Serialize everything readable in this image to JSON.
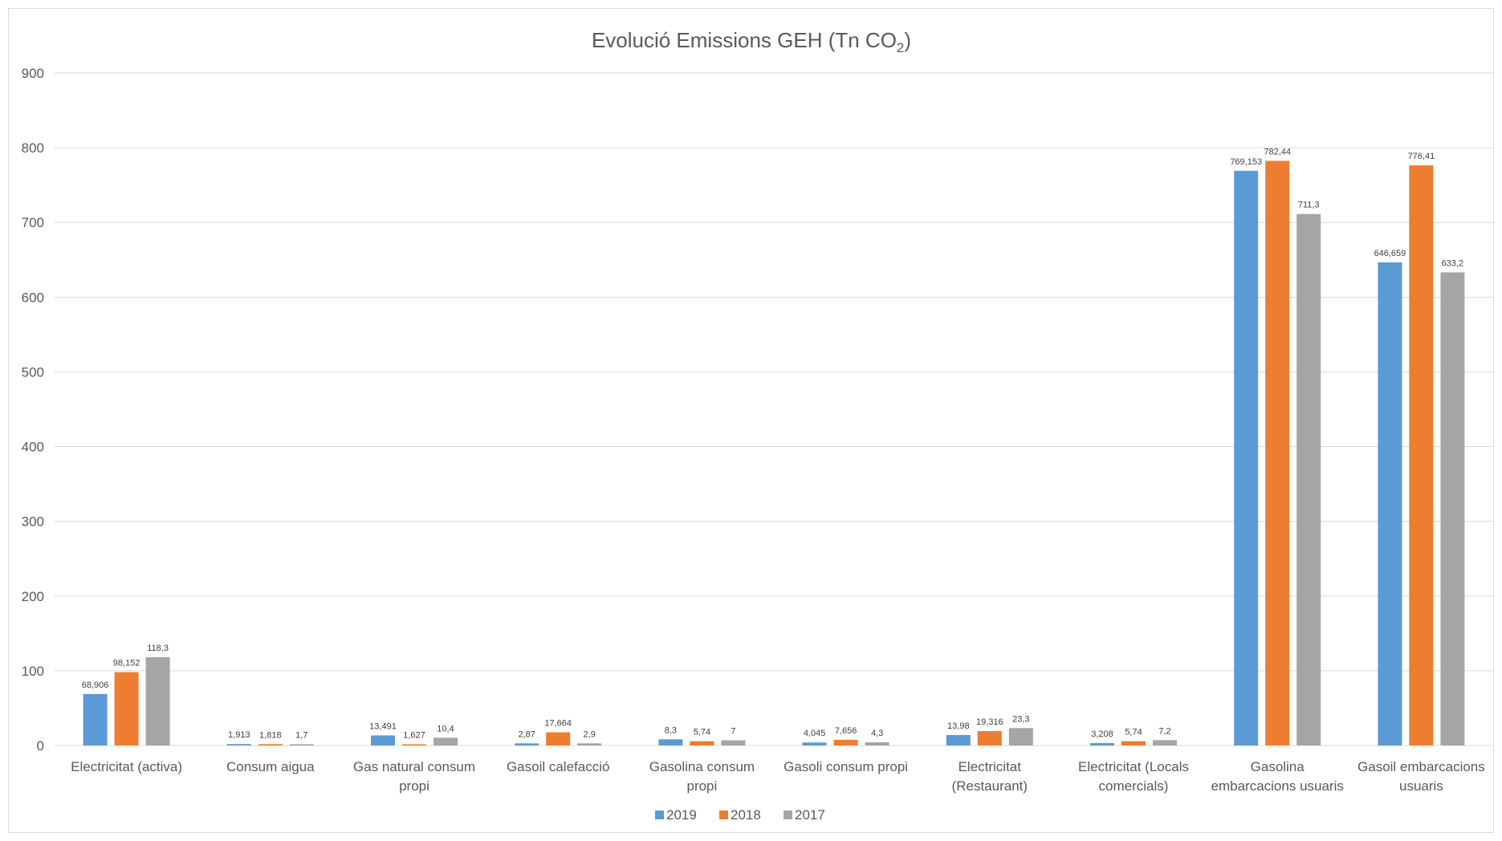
{
  "chart_data": {
    "type": "bar",
    "title": "Evolució Emissions GEH (Tn CO",
    "title_subscript": "2",
    "title_suffix": ")",
    "xlabel": "",
    "ylabel": "",
    "ylim": [
      0,
      900
    ],
    "yticks": [
      "0",
      "100",
      "200",
      "300",
      "400",
      "500",
      "600",
      "700",
      "800",
      "900"
    ],
    "grid": true,
    "legend_position": "bottom",
    "categories": [
      [
        "Electricitat (activa)"
      ],
      [
        "Consum aigua"
      ],
      [
        "Gas natural consum",
        "propi"
      ],
      [
        "Gasoil calefacció"
      ],
      [
        "Gasolina consum",
        "propi"
      ],
      [
        "Gasoli consum propi"
      ],
      [
        "Electricitat",
        "(Restaurant)"
      ],
      [
        "Electricitat (Locals",
        "comercials)"
      ],
      [
        "Gasolina",
        "embarcacions usuaris"
      ],
      [
        "Gasoil embarcacions",
        "usuaris"
      ]
    ],
    "series": [
      {
        "name": "2019",
        "color": "#5b9bd5",
        "values": [
          68.906,
          1.913,
          13.491,
          2.87,
          8.3,
          4.045,
          13.98,
          3.208,
          769.153,
          646.659
        ],
        "labels": [
          "68,906",
          "1,913",
          "13,491",
          "2,87",
          "8,3",
          "4,045",
          "13,98",
          "3,208",
          "769,153",
          "646,659"
        ]
      },
      {
        "name": "2018",
        "color": "#ed7d31",
        "values": [
          98.152,
          1.818,
          1.627,
          17.664,
          5.74,
          7.656,
          19.316,
          5.74,
          782.44,
          776.41
        ],
        "labels": [
          "98,152",
          "1,818",
          "1,627",
          "17,664",
          "5,74",
          "7,656",
          "19,316",
          "5,74",
          "782,44",
          "776,41"
        ]
      },
      {
        "name": "2017",
        "color": "#a5a5a5",
        "values": [
          118.3,
          1.7,
          10.4,
          2.9,
          7,
          4.3,
          23.3,
          7.2,
          711.3,
          633.2
        ],
        "labels": [
          "118,3",
          "1,7",
          "10,4",
          "2,9",
          "7",
          "4,3",
          "23,3",
          "7,2",
          "711,3",
          "633,2"
        ]
      }
    ],
    "gridline_color": "#d9d9d9"
  }
}
